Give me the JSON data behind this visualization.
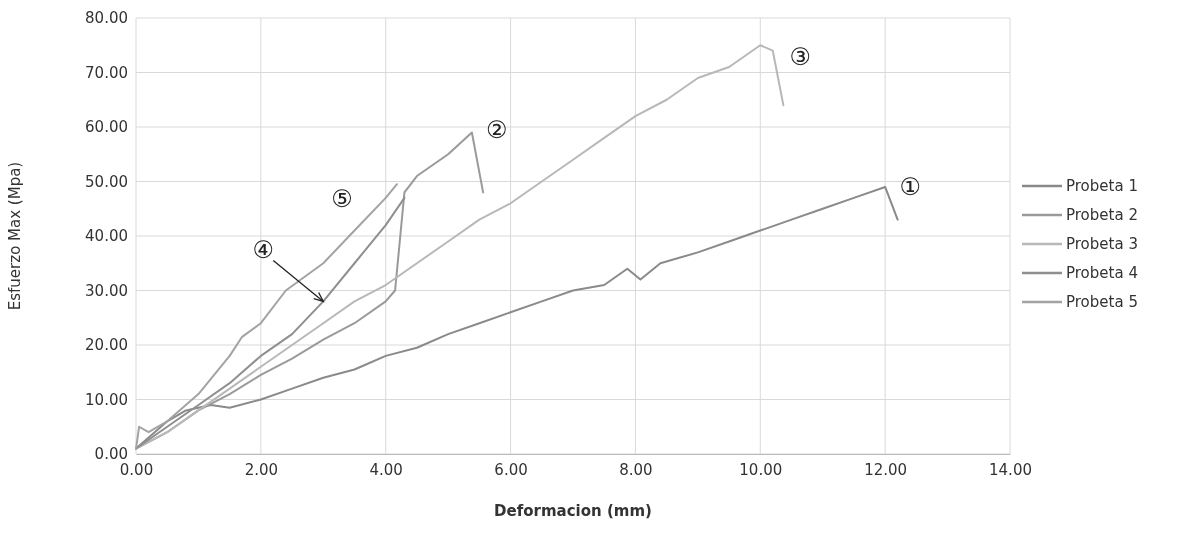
{
  "chart_data": {
    "type": "line",
    "xlabel": "Deformacion (mm)",
    "ylabel": "Esfuerzo Max (Mpa)",
    "xlim": [
      0,
      14
    ],
    "ylim": [
      0,
      80
    ],
    "xticks": [
      {
        "value": 0,
        "label": "0.00"
      },
      {
        "value": 2,
        "label": "2.00"
      },
      {
        "value": 4,
        "label": "4.00"
      },
      {
        "value": 6,
        "label": "6.00"
      },
      {
        "value": 8,
        "label": "8.00"
      },
      {
        "value": 10,
        "label": "10.00"
      },
      {
        "value": 12,
        "label": "12.00"
      },
      {
        "value": 14,
        "label": "14.00"
      }
    ],
    "yticks": [
      {
        "value": 0,
        "label": "0.00"
      },
      {
        "value": 10,
        "label": "10.00"
      },
      {
        "value": 20,
        "label": "20.00"
      },
      {
        "value": 30,
        "label": "30.00"
      },
      {
        "value": 40,
        "label": "40.00"
      },
      {
        "value": 50,
        "label": "50.00"
      },
      {
        "value": 60,
        "label": "60.00"
      },
      {
        "value": 70,
        "label": "70.00"
      },
      {
        "value": 80,
        "label": "80.00"
      }
    ],
    "grid": true,
    "legend": "right",
    "marker": "none",
    "line_style": "solid",
    "series": [
      {
        "name": "Probeta 1",
        "color": "#8a8a8a",
        "x": [
          0,
          0.3,
          0.5,
          0.8,
          1.2,
          1.5,
          2,
          2.5,
          3,
          3.5,
          4,
          4.5,
          5,
          5.5,
          6,
          6.5,
          7,
          7.5,
          7.87,
          8.08,
          8.4,
          9,
          9.5,
          10,
          10.5,
          11,
          11.5,
          12,
          12.2
        ],
        "values": [
          1,
          4,
          6,
          8,
          9,
          8.5,
          10,
          12,
          14,
          15.5,
          18,
          19.5,
          22,
          24,
          26,
          28,
          30,
          31,
          34,
          32,
          35,
          37,
          39,
          41,
          43,
          45,
          47,
          49,
          43
        ]
      },
      {
        "name": "Probeta 2",
        "color": "#9a9a9a",
        "x": [
          0,
          0.5,
          1,
          1.5,
          2,
          2.5,
          3,
          3.5,
          4,
          4.15,
          4.3,
          4.5,
          5,
          5.38,
          5.56
        ],
        "values": [
          1,
          4,
          8,
          11,
          14.5,
          17.5,
          21,
          24,
          28,
          30,
          48,
          51,
          55,
          59,
          48
        ]
      },
      {
        "name": "Probeta 3",
        "color": "#b8b8b8",
        "x": [
          0,
          0.5,
          1,
          1.5,
          2,
          2.5,
          3,
          3.5,
          4,
          4.5,
          5,
          5.5,
          6,
          6.5,
          7,
          7.5,
          8,
          8.5,
          9,
          9.5,
          10,
          10.2,
          10.37
        ],
        "values": [
          1,
          4,
          8,
          12,
          16,
          20,
          24,
          28,
          31,
          35,
          39,
          43,
          46,
          50,
          54,
          58,
          62,
          65,
          69,
          71,
          75,
          74,
          64
        ]
      },
      {
        "name": "Probeta 4",
        "color": "#8f8f8f",
        "x": [
          0,
          0.5,
          1,
          1.5,
          2,
          2.5,
          3,
          3.5,
          4,
          4.3
        ],
        "values": [
          1,
          5,
          9,
          13,
          18,
          22,
          28,
          35,
          42,
          47
        ]
      },
      {
        "name": "Probeta 5",
        "color": "#a3a3a3",
        "x": [
          0,
          0.05,
          0.2,
          0.5,
          1,
          1.5,
          1.7,
          2,
          2.4,
          3,
          3.5,
          4,
          4.18
        ],
        "values": [
          1,
          5,
          4,
          6,
          11,
          18,
          21.5,
          24,
          30,
          35,
          41,
          47,
          49.5
        ]
      }
    ],
    "annotations": [
      "①",
      "②",
      "③",
      {
        "text": "④",
        "x": 3,
        "y": 28
      },
      "⑤"
    ]
  }
}
